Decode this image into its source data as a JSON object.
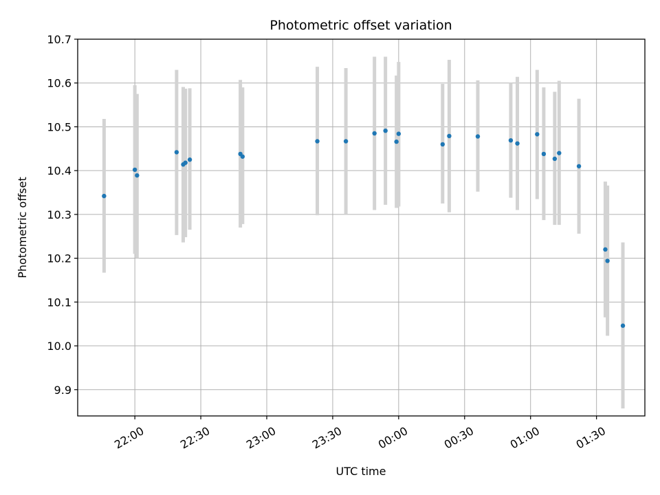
{
  "chart_data": {
    "type": "scatter",
    "title": "Photometric offset variation",
    "xlabel": "UTC time",
    "ylabel": "Photometric offset",
    "ylim": [
      9.84,
      10.7
    ],
    "xlim": [
      "21:34",
      "01:52"
    ],
    "grid": true,
    "x_ticks": [
      "22:00",
      "22:30",
      "23:00",
      "23:30",
      "00:00",
      "00:30",
      "01:00",
      "01:30"
    ],
    "y_ticks": [
      "9.9",
      "10.0",
      "10.1",
      "10.2",
      "10.3",
      "10.4",
      "10.5",
      "10.6",
      "10.7"
    ],
    "errorbar_color": "#d3d3d3",
    "point_color": "#1f77b4",
    "points": [
      {
        "time": "21:46",
        "value": 10.342,
        "err_low": 10.167,
        "err_high": 10.518
      },
      {
        "time": "22:00",
        "value": 10.402,
        "err_low": 10.21,
        "err_high": 10.595
      },
      {
        "time": "22:01",
        "value": 10.389,
        "err_low": 10.2,
        "err_high": 10.575
      },
      {
        "time": "22:19",
        "value": 10.442,
        "err_low": 10.253,
        "err_high": 10.63
      },
      {
        "time": "22:22",
        "value": 10.414,
        "err_low": 10.236,
        "err_high": 10.591
      },
      {
        "time": "22:23",
        "value": 10.418,
        "err_low": 10.248,
        "err_high": 10.587
      },
      {
        "time": "22:25",
        "value": 10.425,
        "err_low": 10.265,
        "err_high": 10.588
      },
      {
        "time": "22:48",
        "value": 10.438,
        "err_low": 10.27,
        "err_high": 10.607
      },
      {
        "time": "22:49",
        "value": 10.432,
        "err_low": 10.278,
        "err_high": 10.59
      },
      {
        "time": "23:23",
        "value": 10.467,
        "err_low": 10.298,
        "err_high": 10.637
      },
      {
        "time": "23:36",
        "value": 10.467,
        "err_low": 10.3,
        "err_high": 10.634
      },
      {
        "time": "23:49",
        "value": 10.485,
        "err_low": 10.31,
        "err_high": 10.66
      },
      {
        "time": "23:54",
        "value": 10.491,
        "err_low": 10.322,
        "err_high": 10.66
      },
      {
        "time": "23:59",
        "value": 10.466,
        "err_low": 10.315,
        "err_high": 10.617
      },
      {
        "time": "00:00",
        "value": 10.484,
        "err_low": 10.318,
        "err_high": 10.648
      },
      {
        "time": "00:20",
        "value": 10.46,
        "err_low": 10.325,
        "err_high": 10.598
      },
      {
        "time": "00:23",
        "value": 10.479,
        "err_low": 10.305,
        "err_high": 10.653
      },
      {
        "time": "00:36",
        "value": 10.478,
        "err_low": 10.352,
        "err_high": 10.606
      },
      {
        "time": "00:51",
        "value": 10.469,
        "err_low": 10.338,
        "err_high": 10.6
      },
      {
        "time": "00:54",
        "value": 10.462,
        "err_low": 10.31,
        "err_high": 10.614
      },
      {
        "time": "01:03",
        "value": 10.483,
        "err_low": 10.335,
        "err_high": 10.63
      },
      {
        "time": "01:06",
        "value": 10.438,
        "err_low": 10.287,
        "err_high": 10.59
      },
      {
        "time": "01:11",
        "value": 10.427,
        "err_low": 10.276,
        "err_high": 10.58
      },
      {
        "time": "01:13",
        "value": 10.44,
        "err_low": 10.276,
        "err_high": 10.605
      },
      {
        "time": "01:22",
        "value": 10.41,
        "err_low": 10.256,
        "err_high": 10.564
      },
      {
        "time": "01:34",
        "value": 10.22,
        "err_low": 10.065,
        "err_high": 10.375
      },
      {
        "time": "01:35",
        "value": 10.194,
        "err_low": 10.023,
        "err_high": 10.366
      },
      {
        "time": "01:42",
        "value": 10.046,
        "err_low": 9.857,
        "err_high": 10.236
      }
    ]
  }
}
